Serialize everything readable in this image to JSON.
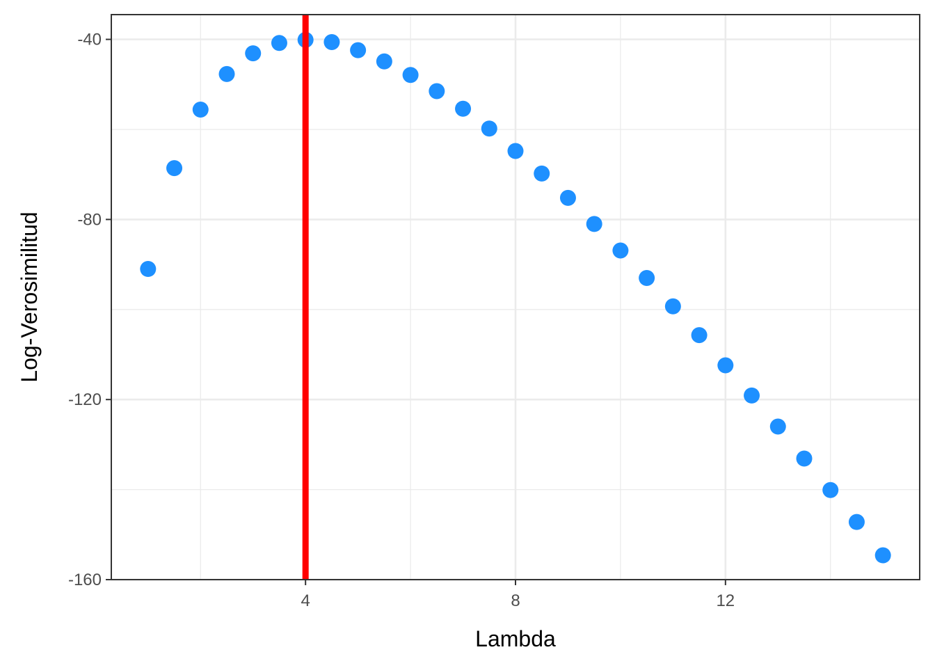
{
  "chart_data": {
    "type": "scatter",
    "title": "",
    "xlabel": "Lambda",
    "ylabel": "Log-Verosimilitud",
    "xlim": [
      0.3,
      15.7
    ],
    "ylim": [
      -160,
      -34.5
    ],
    "x_ticks": [
      4,
      8,
      12
    ],
    "x_tick_labels": [
      "4",
      "8",
      "12"
    ],
    "x_minor_ticks": [
      2,
      6,
      10,
      14
    ],
    "y_ticks": [
      -160,
      -120,
      -80,
      -40
    ],
    "y_tick_labels": [
      "-160",
      "-120",
      "-80",
      "-40"
    ],
    "y_minor_ticks": [
      -140,
      -100,
      -60
    ],
    "grid": true,
    "legend": "none",
    "series": [
      {
        "color": "#1E90FF",
        "x": [
          1,
          1.5,
          2,
          2.5,
          3,
          3.5,
          4,
          4.5,
          5,
          5.5,
          6,
          6.5,
          7,
          7.5,
          8,
          8.5,
          9,
          9.5,
          10,
          10.5,
          11,
          11.5,
          12,
          12.5,
          13,
          13.5,
          14,
          14.5,
          15
        ],
        "y": [
          -91.0,
          -68.6,
          -55.6,
          -47.7,
          -43.1,
          -40.8,
          -40.1,
          -40.6,
          -42.4,
          -44.9,
          -47.9,
          -51.5,
          -55.4,
          -59.8,
          -64.8,
          -69.8,
          -75.2,
          -81.0,
          -86.9,
          -93.0,
          -99.3,
          -105.7,
          -112.4,
          -119.1,
          -126.0,
          -133.1,
          -140.1,
          -147.2,
          -154.6
        ]
      }
    ],
    "vlines": [
      {
        "x": 4,
        "color": "#FF0000"
      }
    ]
  }
}
